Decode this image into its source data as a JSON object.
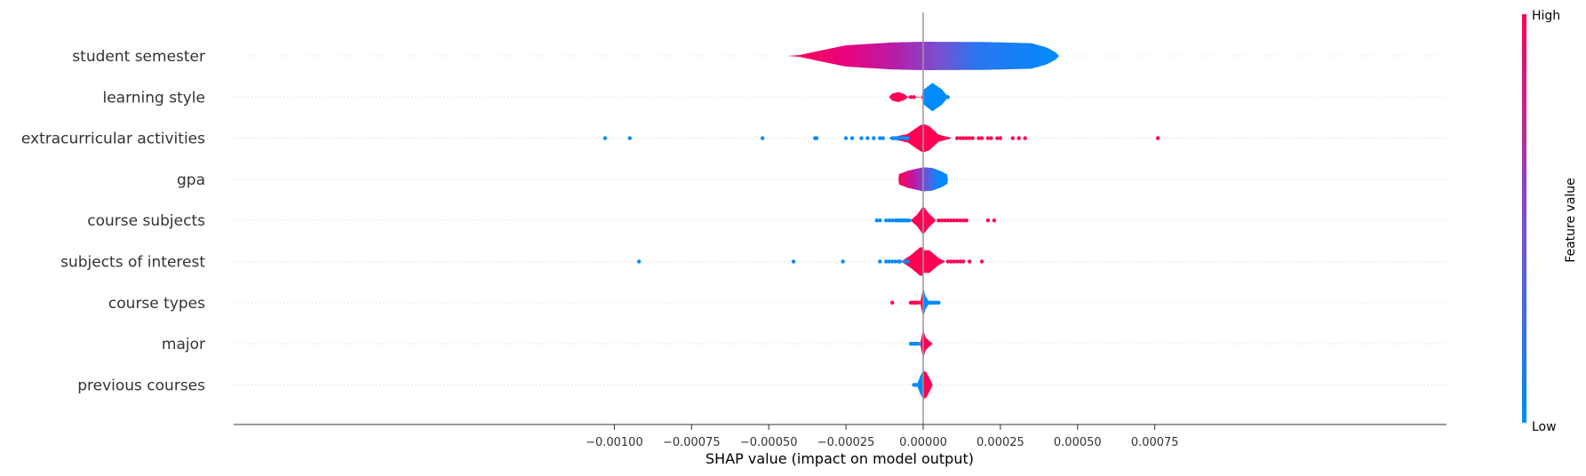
{
  "chart_data": {
    "type": "violin",
    "title": "",
    "xlabel": "SHAP value (impact on model output)",
    "ylabel": "",
    "xlim": [
      -0.00112,
      0.00084
    ],
    "xticks": [
      -0.001,
      -0.00075,
      -0.0005,
      -0.00025,
      0.0,
      0.00025,
      0.0005,
      0.00075
    ],
    "xtick_labels": [
      "−0.00100",
      "−0.00075",
      "−0.00050",
      "−0.00025",
      "0.00000",
      "0.00025",
      "0.00050",
      "0.00075"
    ],
    "colorbar": {
      "label": "Feature value",
      "high_label": "High",
      "low_label": "Low",
      "high_color": "#ff0052",
      "low_color": "#008bfb"
    },
    "features": [
      {
        "name": "student semester",
        "range": [
          -0.00044,
          0.00044
        ],
        "mode": "gradient",
        "violin": [
          [
            -0.00044,
            0.003
          ],
          [
            -0.0004,
            0.06
          ],
          [
            -0.00035,
            0.3
          ],
          [
            -0.00025,
            0.75
          ],
          [
            -0.0001,
            0.95
          ],
          [
            0.0,
            1.0
          ],
          [
            0.0002,
            0.98
          ],
          [
            0.00035,
            0.9
          ],
          [
            0.0004,
            0.6
          ],
          [
            0.00044,
            0.12
          ]
        ],
        "points": []
      },
      {
        "name": "learning style",
        "range": [
          -0.00011,
          8e-05
        ],
        "mode": "split",
        "violin": [
          [
            -0.00011,
            0.02
          ],
          [
            -0.0001,
            0.25
          ],
          [
            -8e-05,
            0.35
          ],
          [
            -6e-05,
            0.2
          ],
          [
            -5e-05,
            0.03
          ],
          [
            -5e-06,
            0.02
          ],
          [
            0.0,
            0.5
          ],
          [
            3e-05,
            1.0
          ],
          [
            6e-05,
            0.55
          ],
          [
            8e-05,
            0.04
          ]
        ],
        "points": [
          {
            "x": -4e-05,
            "c": "high"
          },
          {
            "x": -3e-05,
            "c": "high"
          },
          {
            "x": 8e-05,
            "c": "low"
          }
        ]
      },
      {
        "name": "extracurricular activities",
        "range": [
          -0.00103,
          0.00076
        ],
        "mode": "split",
        "violin": [
          [
            -0.00011,
            0.02
          ],
          [
            -5e-05,
            0.3
          ],
          [
            -1e-05,
            0.9
          ],
          [
            0.0,
            1.0
          ],
          [
            2e-05,
            0.85
          ],
          [
            5e-05,
            0.25
          ],
          [
            9e-05,
            0.03
          ]
        ],
        "points": [
          {
            "x": -0.00103,
            "c": "low"
          },
          {
            "x": -0.00095,
            "c": "low"
          },
          {
            "x": -0.00052,
            "c": "low"
          },
          {
            "x": -0.00035,
            "c": "low"
          },
          {
            "x": -0.000345,
            "c": "low"
          },
          {
            "x": -0.00025,
            "c": "low"
          },
          {
            "x": -0.00023,
            "c": "low"
          },
          {
            "x": -0.0002,
            "c": "low"
          },
          {
            "x": -0.00018,
            "c": "low"
          },
          {
            "x": -0.00016,
            "c": "low"
          },
          {
            "x": -0.00014,
            "c": "low"
          },
          {
            "x": -0.00013,
            "c": "low"
          },
          {
            "x": -0.0001,
            "c": "low"
          },
          {
            "x": -9.5e-05,
            "c": "low"
          },
          {
            "x": -9e-05,
            "c": "low"
          },
          {
            "x": -8.5e-05,
            "c": "low"
          },
          {
            "x": -8e-05,
            "c": "low"
          },
          {
            "x": -7.5e-05,
            "c": "low"
          },
          {
            "x": -7e-05,
            "c": "low"
          },
          {
            "x": -6.5e-05,
            "c": "low"
          },
          {
            "x": -6e-05,
            "c": "low"
          },
          {
            "x": -5.5e-05,
            "c": "low"
          },
          {
            "x": -5e-05,
            "c": "low"
          },
          {
            "x": 0.00011,
            "c": "high"
          },
          {
            "x": 0.00012,
            "c": "high"
          },
          {
            "x": 0.00013,
            "c": "high"
          },
          {
            "x": 0.00014,
            "c": "high"
          },
          {
            "x": 0.00015,
            "c": "high"
          },
          {
            "x": 0.00016,
            "c": "high"
          },
          {
            "x": 0.00018,
            "c": "high"
          },
          {
            "x": 0.00019,
            "c": "high"
          },
          {
            "x": 0.00021,
            "c": "high"
          },
          {
            "x": 0.00022,
            "c": "high"
          },
          {
            "x": 0.00024,
            "c": "high"
          },
          {
            "x": 0.00025,
            "c": "high"
          },
          {
            "x": 0.00029,
            "c": "high"
          },
          {
            "x": 0.00031,
            "c": "high"
          },
          {
            "x": 0.00033,
            "c": "high"
          },
          {
            "x": 0.00076,
            "c": "high"
          }
        ]
      },
      {
        "name": "gpa",
        "range": [
          -8e-05,
          8e-05
        ],
        "mode": "gradient2",
        "violin": [
          [
            -8e-05,
            0.35
          ],
          [
            -5e-05,
            0.6
          ],
          [
            -2e-05,
            0.75
          ],
          [
            0.0,
            0.85
          ],
          [
            3e-05,
            0.8
          ],
          [
            6e-05,
            0.55
          ],
          [
            8e-05,
            0.3
          ]
        ],
        "points": []
      },
      {
        "name": "course subjects",
        "range": [
          -0.00015,
          0.00024
        ],
        "mode": "split",
        "violin": [
          [
            -4e-05,
            0.02
          ],
          [
            -2e-05,
            0.4
          ],
          [
            0.0,
            1.0
          ],
          [
            2e-05,
            0.45
          ],
          [
            4e-05,
            0.04
          ]
        ],
        "points": [
          {
            "x": -0.00015,
            "c": "low"
          },
          {
            "x": -0.00014,
            "c": "low"
          },
          {
            "x": -0.00012,
            "c": "low"
          },
          {
            "x": -0.00011,
            "c": "low"
          },
          {
            "x": -0.0001,
            "c": "low"
          },
          {
            "x": -9e-05,
            "c": "low"
          },
          {
            "x": -8.5e-05,
            "c": "low"
          },
          {
            "x": -8e-05,
            "c": "low"
          },
          {
            "x": -7.5e-05,
            "c": "low"
          },
          {
            "x": -7e-05,
            "c": "low"
          },
          {
            "x": -6.5e-05,
            "c": "low"
          },
          {
            "x": -6e-05,
            "c": "low"
          },
          {
            "x": -5.5e-05,
            "c": "low"
          },
          {
            "x": -5e-05,
            "c": "low"
          },
          {
            "x": -4.5e-05,
            "c": "low"
          },
          {
            "x": 5e-05,
            "c": "high"
          },
          {
            "x": 6e-05,
            "c": "high"
          },
          {
            "x": 7e-05,
            "c": "high"
          },
          {
            "x": 8e-05,
            "c": "high"
          },
          {
            "x": 9e-05,
            "c": "high"
          },
          {
            "x": 0.0001,
            "c": "high"
          },
          {
            "x": 0.00011,
            "c": "high"
          },
          {
            "x": 0.00012,
            "c": "high"
          },
          {
            "x": 0.00013,
            "c": "high"
          },
          {
            "x": 0.00014,
            "c": "high"
          },
          {
            "x": 0.00021,
            "c": "high"
          },
          {
            "x": 0.00023,
            "c": "high"
          }
        ]
      },
      {
        "name": "subjects of interest",
        "range": [
          -0.00092,
          0.00019
        ],
        "mode": "split",
        "violin": [
          [
            -7e-05,
            0.02
          ],
          [
            -4e-05,
            0.45
          ],
          [
            -1e-05,
            1.0
          ],
          [
            2e-05,
            0.8
          ],
          [
            5e-05,
            0.25
          ],
          [
            7e-05,
            0.03
          ]
        ],
        "points": [
          {
            "x": -0.00092,
            "c": "low"
          },
          {
            "x": -0.00042,
            "c": "low"
          },
          {
            "x": -0.00026,
            "c": "low"
          },
          {
            "x": -0.00014,
            "c": "low"
          },
          {
            "x": -0.00012,
            "c": "low"
          },
          {
            "x": -0.00011,
            "c": "low"
          },
          {
            "x": -0.0001,
            "c": "low"
          },
          {
            "x": -9e-05,
            "c": "low"
          },
          {
            "x": -8e-05,
            "c": "low"
          },
          {
            "x": -7.5e-05,
            "c": "low"
          },
          {
            "x": -6e-05,
            "c": "low"
          },
          {
            "x": -5e-05,
            "c": "low"
          },
          {
            "x": 8e-05,
            "c": "high"
          },
          {
            "x": 9e-05,
            "c": "high"
          },
          {
            "x": 0.0001,
            "c": "high"
          },
          {
            "x": 0.00011,
            "c": "high"
          },
          {
            "x": 0.00012,
            "c": "high"
          },
          {
            "x": 0.00013,
            "c": "high"
          },
          {
            "x": 0.00015,
            "c": "high"
          },
          {
            "x": 0.00019,
            "c": "high"
          }
        ]
      },
      {
        "name": "course types",
        "range": [
          -0.0001,
          5e-05
        ],
        "mode": "split",
        "violin": [
          [
            -1e-05,
            0.02
          ],
          [
            -5e-06,
            0.5
          ],
          [
            0.0,
            1.0
          ],
          [
            8e-06,
            0.45
          ],
          [
            2e-05,
            0.04
          ]
        ],
        "points": [
          {
            "x": -0.0001,
            "c": "high"
          },
          {
            "x": -4e-05,
            "c": "high"
          },
          {
            "x": -3.5e-05,
            "c": "high"
          },
          {
            "x": -3e-05,
            "c": "high"
          },
          {
            "x": -2.5e-05,
            "c": "high"
          },
          {
            "x": -2e-05,
            "c": "high"
          },
          {
            "x": -1.5e-05,
            "c": "high"
          },
          {
            "x": 2e-05,
            "c": "low"
          },
          {
            "x": 2.5e-05,
            "c": "low"
          },
          {
            "x": 3e-05,
            "c": "low"
          },
          {
            "x": 3.5e-05,
            "c": "low"
          },
          {
            "x": 4e-05,
            "c": "low"
          },
          {
            "x": 4.5e-05,
            "c": "low"
          },
          {
            "x": 5e-05,
            "c": "low"
          }
        ]
      },
      {
        "name": "major",
        "range": [
          -4e-05,
          3e-05
        ],
        "mode": "split",
        "violin": [
          [
            -1e-05,
            0.02
          ],
          [
            -5e-06,
            0.5
          ],
          [
            0.0,
            1.0
          ],
          [
            8e-06,
            0.45
          ],
          [
            2e-05,
            0.2
          ],
          [
            3e-05,
            0.03
          ]
        ],
        "points": [
          {
            "x": -4e-05,
            "c": "low"
          },
          {
            "x": -3.5e-05,
            "c": "low"
          },
          {
            "x": -3e-05,
            "c": "low"
          },
          {
            "x": -2.5e-05,
            "c": "low"
          },
          {
            "x": -2e-05,
            "c": "low"
          },
          {
            "x": -1.5e-05,
            "c": "low"
          }
        ]
      },
      {
        "name": "previous courses",
        "range": [
          -3e-05,
          3e-05
        ],
        "mode": "split",
        "violin": [
          [
            -2e-05,
            0.03
          ],
          [
            -1e-05,
            0.6
          ],
          [
            0.0,
            1.0
          ],
          [
            1e-05,
            0.9
          ],
          [
            2e-05,
            0.5
          ],
          [
            3e-05,
            0.05
          ]
        ],
        "points": [
          {
            "x": -3e-05,
            "c": "low"
          },
          {
            "x": -2.5e-05,
            "c": "low"
          },
          {
            "x": -2e-05,
            "c": "low"
          }
        ]
      }
    ]
  }
}
